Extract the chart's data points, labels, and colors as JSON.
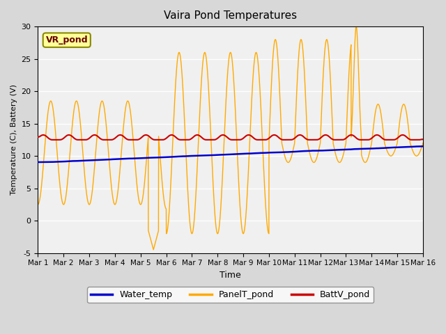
{
  "title": "Vaira Pond Temperatures",
  "xlabel": "Time",
  "ylabel": "Temperature (C), Battery (V)",
  "watermark_text": "VR_pond",
  "ylim": [
    -5,
    30
  ],
  "xlim": [
    0,
    15
  ],
  "xtick_labels": [
    "Mar 1",
    "Mar 2",
    "Mar 3",
    "Mar 4",
    "Mar 5",
    "Mar 6",
    "Mar 7",
    "Mar 8",
    "Mar 9",
    "Mar 10",
    "Mar 11",
    "Mar 12",
    "Mar 13",
    "Mar 14",
    "Mar 15",
    "Mar 16"
  ],
  "xtick_positions": [
    0,
    1,
    2,
    3,
    4,
    5,
    6,
    7,
    8,
    9,
    10,
    11,
    12,
    13,
    14,
    15
  ],
  "ytick_positions": [
    -5,
    0,
    5,
    10,
    15,
    20,
    25,
    30
  ],
  "colors": {
    "water_temp": "#0000cc",
    "panel_t": "#ffaa00",
    "batt_v": "#cc0000",
    "plot_bg": "#f0f0f0",
    "watermark_bg": "#ffff99",
    "watermark_border": "#888800",
    "watermark_text": "#660000"
  },
  "legend_labels": [
    "Water_temp",
    "PanelT_pond",
    "BattV_pond"
  ]
}
